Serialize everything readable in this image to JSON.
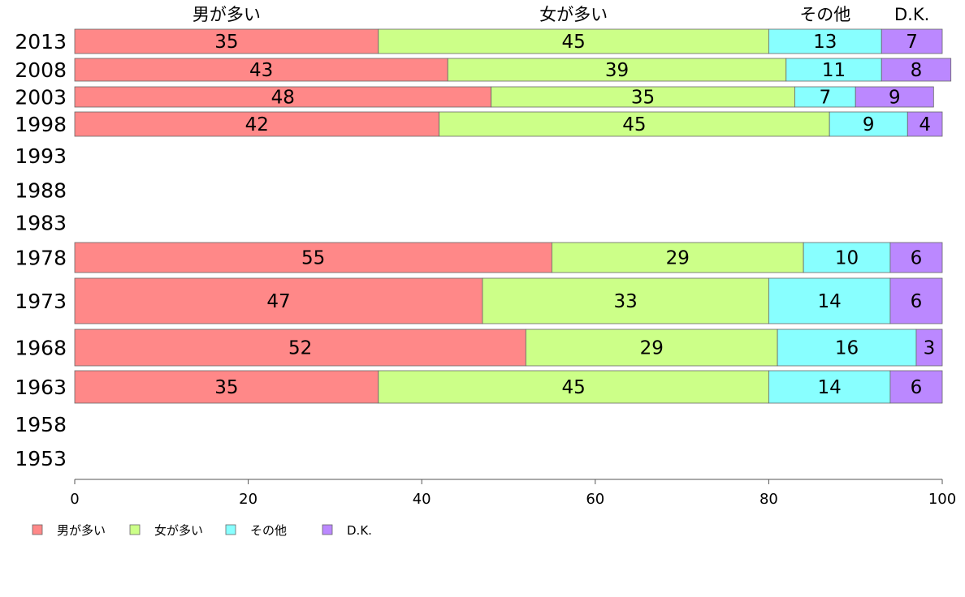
{
  "chart_data": {
    "type": "bar",
    "orientation": "horizontal",
    "stacked": true,
    "categories": [
      "2013",
      "2008",
      "2003",
      "1998",
      "1993",
      "1988",
      "1983",
      "1978",
      "1973",
      "1968",
      "1963",
      "1958",
      "1953"
    ],
    "series": [
      {
        "name": "男が多い",
        "color": "#ff8888",
        "values": [
          35,
          43,
          48,
          42,
          null,
          null,
          null,
          55,
          47,
          52,
          35,
          null,
          null
        ]
      },
      {
        "name": "女が多い",
        "color": "#ccff88",
        "values": [
          45,
          39,
          35,
          45,
          null,
          null,
          null,
          29,
          33,
          29,
          45,
          null,
          null
        ]
      },
      {
        "name": "その他",
        "color": "#88ffff",
        "values": [
          13,
          11,
          7,
          9,
          null,
          null,
          null,
          10,
          14,
          16,
          14,
          null,
          null
        ]
      },
      {
        "name": "D.K.",
        "color": "#bb88ff",
        "values": [
          7,
          8,
          9,
          4,
          null,
          null,
          null,
          6,
          6,
          3,
          6,
          null,
          null
        ]
      }
    ],
    "column_headers": [
      "男が多い",
      "女が多い",
      "その他",
      "D.K."
    ],
    "xlim": [
      0,
      100
    ],
    "xticks": [
      0,
      20,
      40,
      60,
      80,
      100
    ],
    "xlabel": "",
    "ylabel": "",
    "grid": false,
    "legend_position": "bottom-left"
  }
}
